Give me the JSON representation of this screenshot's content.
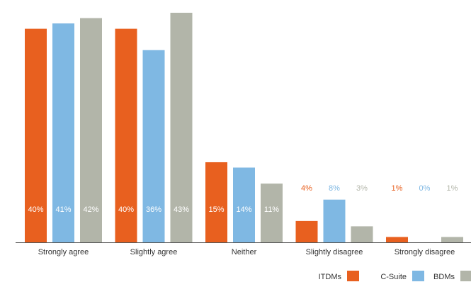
{
  "chart_data": {
    "type": "bar",
    "categories": [
      "Strongly agree",
      "Slightly agree",
      "Neither",
      "Slightly disagree",
      "Strongly disagree"
    ],
    "series": [
      {
        "name": "ITDMs",
        "color": "#e8601f",
        "values": [
          40,
          40,
          15,
          4,
          1
        ],
        "labels": [
          "40%",
          "40%",
          "15%",
          "4%",
          "1%"
        ]
      },
      {
        "name": "C-Suite",
        "color": "#7fb8e3",
        "values": [
          41,
          36,
          14,
          8,
          0
        ],
        "labels": [
          "41%",
          "36%",
          "14%",
          "8%",
          "0%"
        ]
      },
      {
        "name": "BDMs",
        "color": "#b2b5a9",
        "values": [
          42,
          43,
          11,
          3,
          1
        ],
        "labels": [
          "42%",
          "43%",
          "11%",
          "3%",
          "1%"
        ]
      }
    ],
    "ylim": [
      0,
      43
    ],
    "legend_position": "bottom-right",
    "grid": false
  }
}
